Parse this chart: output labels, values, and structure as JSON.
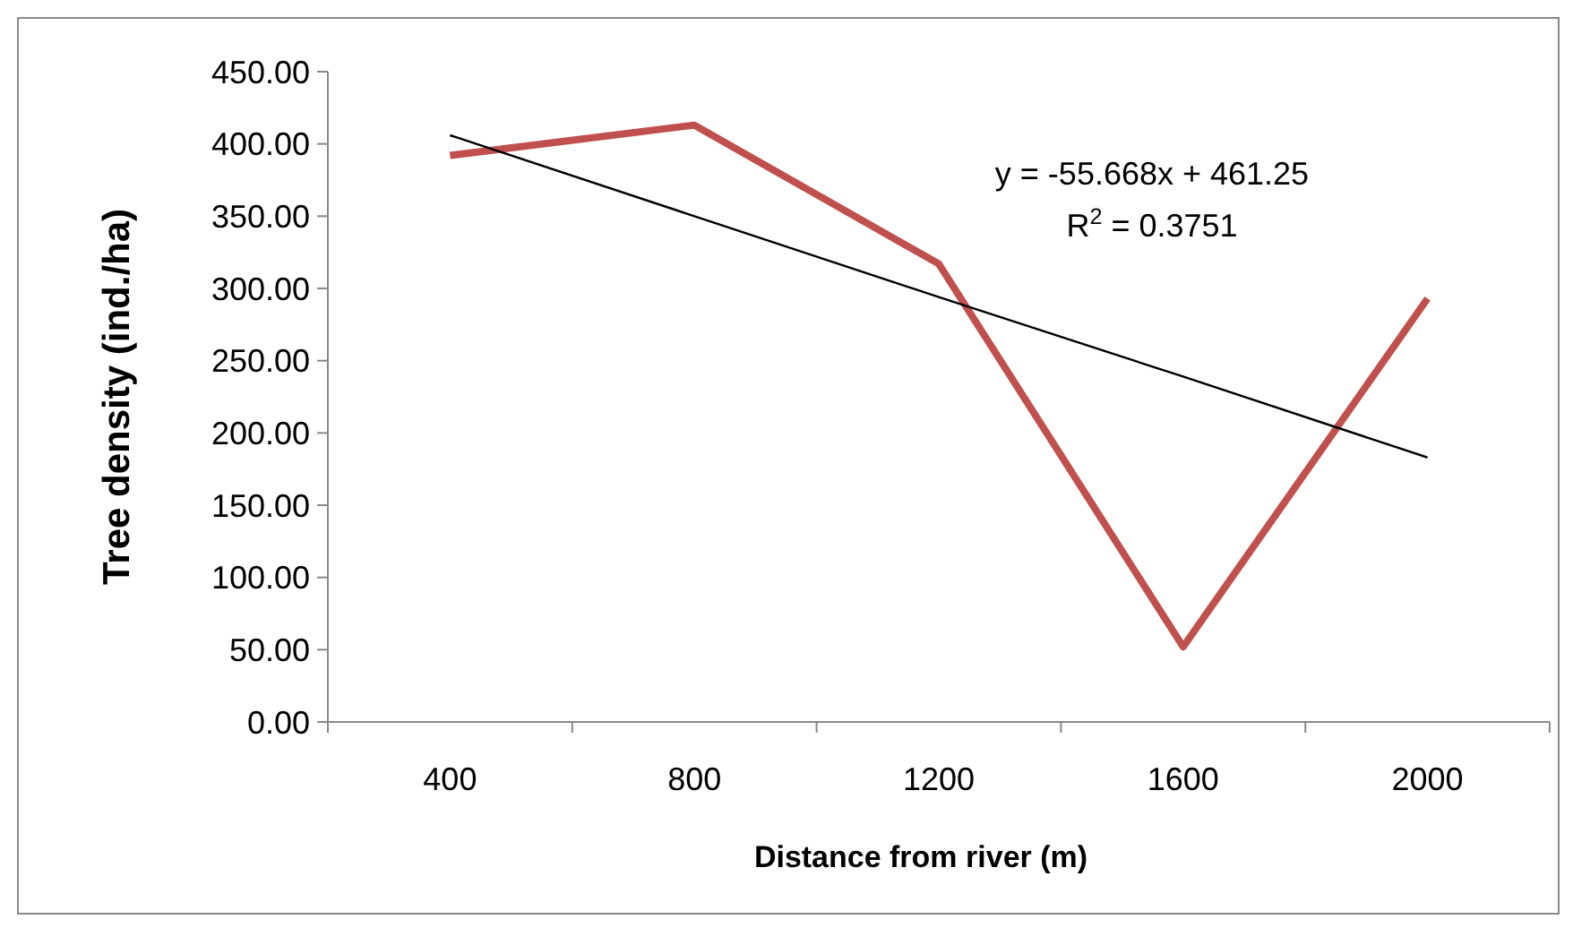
{
  "chart_data": {
    "type": "line",
    "xlabel": "Distance from river (m)",
    "ylabel": "Tree density  (ind./ha)",
    "categories": [
      "400",
      "800",
      "1200",
      "1600",
      "2000"
    ],
    "series": [
      {
        "color": "#c0504d",
        "values": [
          392,
          413,
          317,
          52,
          293
        ]
      },
      {
        "type": "line",
        "color": "#000000",
        "values": [
          406,
          350,
          294,
          239,
          183
        ]
      }
    ],
    "ylim": [
      0,
      450
    ],
    "yticks": [
      {
        "value": 0,
        "label": "0.00"
      },
      {
        "value": 50,
        "label": "50.00"
      },
      {
        "value": 100,
        "label": "100.00"
      },
      {
        "value": 150,
        "label": "150.00"
      },
      {
        "value": 200,
        "label": "200.00"
      },
      {
        "value": 250,
        "label": "250.00"
      },
      {
        "value": 300,
        "label": "300.00"
      },
      {
        "value": 350,
        "label": "350.00"
      },
      {
        "value": 400,
        "label": "400.00"
      },
      {
        "value": 450,
        "label": "450.00"
      }
    ],
    "annotations": [
      "y = -55.668x + 461.25",
      "R$^{2}$ = 0.3751"
    ],
    "grid": false,
    "marker": "none",
    "line_style": "solid"
  }
}
